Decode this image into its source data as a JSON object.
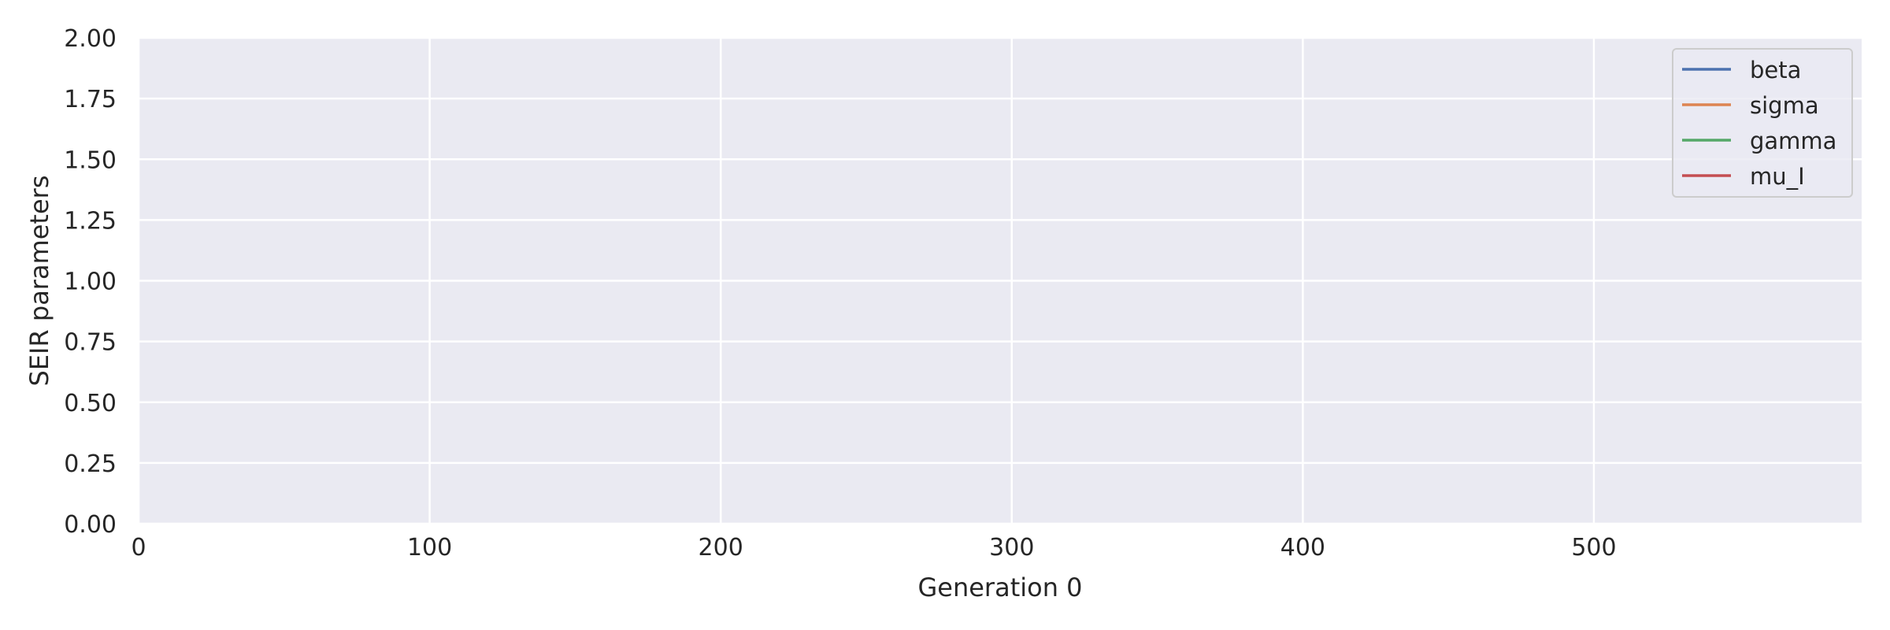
{
  "chart_data": {
    "type": "line",
    "title": "",
    "xlabel": "Generation 0",
    "ylabel": "SEIR parameters",
    "xlim": [
      0,
      592
    ],
    "ylim": [
      0,
      2
    ],
    "x_ticks": [
      0,
      100,
      200,
      300,
      400,
      500
    ],
    "x_tick_labels": [
      "0",
      "100",
      "200",
      "300",
      "400",
      "500"
    ],
    "y_ticks": [
      0,
      0.25,
      0.5,
      0.75,
      1.0,
      1.25,
      1.5,
      1.75,
      2.0
    ],
    "y_tick_labels": [
      "0.00",
      "0.25",
      "0.50",
      "0.75",
      "1.00",
      "1.25",
      "1.50",
      "1.75",
      "2.00"
    ],
    "grid": true,
    "legend_position": "top-right",
    "series": [
      {
        "name": "beta",
        "color": "#4c72b0",
        "x": [],
        "y": []
      },
      {
        "name": "sigma",
        "color": "#dd8452",
        "x": [],
        "y": []
      },
      {
        "name": "gamma",
        "color": "#55a868",
        "x": [],
        "y": []
      },
      {
        "name": "mu_I",
        "color": "#c44e52",
        "x": [],
        "y": []
      }
    ],
    "colors": {
      "plot_background": "#eaeaf2",
      "grid": "#ffffff",
      "text": "#262626"
    }
  }
}
